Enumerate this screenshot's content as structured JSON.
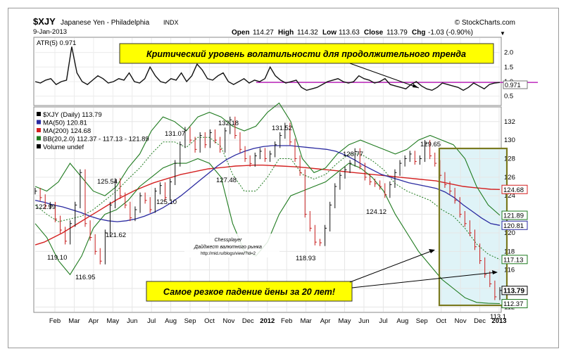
{
  "header": {
    "symbol": "$XJY",
    "name": "Japanese Yen - Philadelphia",
    "exchange": "INDX",
    "date": "9-Jan-2013",
    "brand": "© StockCharts.com",
    "open_label": "Open",
    "open": "114.27",
    "high_label": "High",
    "high": "114.32",
    "low_label": "Low",
    "low": "113.63",
    "close_label": "Close",
    "close": "113.79",
    "chg_label": "Chg",
    "chg": "-1.03 (-0.90%)",
    "chg_arrow": "▼"
  },
  "atr_panel": {
    "legend": "ATR(5) 0.971",
    "ticks": [
      "2.0",
      "1.5",
      "1.0",
      "0.5"
    ],
    "last_value": "0.971",
    "level_line_color": "#b000b0",
    "annotation": "Критический уровень волатильности для продолжительного тренда"
  },
  "price_panel": {
    "legend": [
      {
        "text": "$XJY (Daily) 113.79",
        "color": "#000000"
      },
      {
        "text": "MA(50) 120.81",
        "color": "#2a2aa0"
      },
      {
        "text": "MA(200) 124.68",
        "color": "#d42020"
      },
      {
        "text": "BB(20,2.0) 112.37 - 117.13 - 121.89",
        "color": "#1e7a1e"
      },
      {
        "text": "Volume undef",
        "color": "#000000"
      }
    ],
    "yticks": [
      "132",
      "130",
      "128",
      "126",
      "124",
      "122",
      "120",
      "118",
      "116",
      "114",
      "112"
    ],
    "right_labels": [
      {
        "text": "124.68",
        "value": 124.68,
        "color": "#d42020"
      },
      {
        "text": "121.89",
        "value": 121.89,
        "color": "#1e7a1e"
      },
      {
        "text": "120.81",
        "value": 120.81,
        "color": "#2a2aa0"
      },
      {
        "text": "117.13",
        "value": 117.13,
        "color": "#1e7a1e"
      },
      {
        "text": "113.79",
        "value": 113.79,
        "color": "#000000"
      },
      {
        "text": "112.37",
        "value": 112.37,
        "color": "#1e7a1e"
      }
    ],
    "annotation": "Самое резкое падение йены за 20 лет!",
    "watermark_lines": [
      "Chessplayer",
      "Дайджест валютного рынка",
      "http://mid.ru/blogs/view/?id=2"
    ],
    "highlight_color": "#7a7a20"
  },
  "chart_data": {
    "type": "line",
    "x_axis": [
      "Feb",
      "Mar",
      "Apr",
      "May",
      "Jun",
      "Jul",
      "Aug",
      "Sep",
      "Oct",
      "Nov",
      "Dec",
      "2012",
      "Feb",
      "Mar",
      "Apr",
      "May",
      "Jun",
      "Jul",
      "Aug",
      "Sep",
      "Oct",
      "Nov",
      "Dec",
      "2013"
    ],
    "ylim": [
      111.5,
      133.5
    ],
    "price_annotations": [
      {
        "label": "122.99",
        "value": 122.99
      },
      {
        "label": "119.10",
        "value": 119.1
      },
      {
        "label": "116.95",
        "value": 116.95
      },
      {
        "label": "125.54",
        "value": 125.54
      },
      {
        "label": "121.62",
        "value": 121.62
      },
      {
        "label": "125.10",
        "value": 125.1
      },
      {
        "label": "131.07",
        "value": 131.07
      },
      {
        "label": "132.18",
        "value": 132.18
      },
      {
        "label": "127.48",
        "value": 127.48
      },
      {
        "label": "131.52",
        "value": 131.52
      },
      {
        "label": "118.93",
        "value": 118.93
      },
      {
        "label": "128.77",
        "value": 128.77
      },
      {
        "label": "124.12",
        "value": 124.12
      },
      {
        "label": "129.65",
        "value": 129.65
      },
      {
        "label": "113.1",
        "value": 113.1
      }
    ],
    "price": [
      124.5,
      123.8,
      122.9,
      122.99,
      121.5,
      120.3,
      119.1,
      121,
      123,
      126.5,
      121,
      119.5,
      118,
      116.95,
      120,
      123,
      125.54,
      124,
      123,
      121.62,
      122.5,
      124,
      123.5,
      122.5,
      124.5,
      125.1,
      123.8,
      125.5,
      127.5,
      129.5,
      131.07,
      130,
      129,
      130.5,
      129.5,
      130.8,
      130,
      129,
      131,
      132.18,
      130.5,
      129,
      128,
      127.48,
      128.3,
      128.8,
      128,
      128.5,
      129.5,
      130.5,
      131.52,
      129.8,
      128,
      126.5,
      122,
      120.5,
      119,
      118.93,
      120.5,
      123,
      125,
      126.2,
      126.8,
      127.5,
      128.77,
      127.2,
      126,
      125.5,
      125.3,
      125,
      124.12,
      125.2,
      126.5,
      127.5,
      128,
      128.5,
      127.7,
      128,
      129.65,
      128.3,
      127.5,
      126.2,
      125.2,
      124.5,
      123.5,
      122,
      121,
      120,
      118.5,
      117,
      115.5,
      114.5,
      113.1,
      113.79
    ],
    "ma50": [
      123.5,
      123.3,
      123,
      122.8,
      122.5,
      122.2,
      121.8,
      121.5,
      121.3,
      121.2,
      121.3,
      121.5,
      121.8,
      122.2,
      122.7,
      123.3,
      124,
      124.8,
      125.6,
      126.4,
      127.2,
      127.9,
      128.4,
      128.8,
      129.1,
      129.3,
      129.4,
      129.4,
      129.4,
      129.3,
      129.2,
      129.1,
      129,
      128.8,
      128.4,
      127.9,
      127.3,
      126.8,
      126.3,
      126,
      125.7,
      125.4,
      125.2,
      125,
      124.8,
      124.4,
      123.8,
      123,
      122.3,
      121.6,
      121,
      120.81
    ],
    "ma200": [
      118.7,
      119,
      119.5,
      120,
      120.6,
      121.2,
      121.8,
      122.4,
      123,
      123.6,
      124.1,
      124.6,
      125,
      125.4,
      125.7,
      126,
      126.3,
      126.5,
      126.7,
      126.9,
      127,
      127.1,
      127.2,
      127.25,
      127.3,
      127.3,
      127.25,
      127.2,
      127.15,
      127.1,
      127,
      126.9,
      126.8,
      126.7,
      126.6,
      126.5,
      126.4,
      126.3,
      126.2,
      126.1,
      126,
      125.9,
      125.8,
      125.7,
      125.6,
      125.4,
      125.2,
      125,
      124.9,
      124.8,
      124.7,
      124.68
    ],
    "bb_upper": [
      125,
      124.5,
      125.5,
      127.5,
      126,
      124.5,
      124,
      125,
      127,
      128.5,
      131,
      132.5,
      132,
      131,
      132.5,
      133,
      132.5,
      131.5,
      131,
      131.5,
      133,
      134,
      132,
      128,
      126.5,
      127,
      128.5,
      129.5,
      130,
      129.5,
      129,
      128.5,
      129,
      130,
      130.5,
      130,
      129.5,
      128,
      125,
      123,
      121.89
    ],
    "bb_lower": [
      121,
      119.5,
      117,
      115.5,
      117.5,
      120.5,
      122,
      122.5,
      123.5,
      125,
      126,
      127,
      127.5,
      127.5,
      128,
      127.5,
      126,
      121,
      118,
      117.5,
      119,
      122,
      124,
      124.5,
      125,
      125.5,
      126.5,
      127.5,
      127,
      126,
      124.5,
      122,
      120,
      118,
      116.5,
      115,
      114,
      113,
      112.5,
      112.4,
      112.37
    ],
    "bb_mid": [
      123,
      122,
      121.2,
      121.5,
      121.8,
      122.5,
      123.5,
      124.5,
      125.8,
      127,
      128.5,
      129.8,
      129.8,
      129.2,
      130.3,
      130.3,
      129.3,
      126.3,
      124.5,
      124.5,
      126,
      128,
      128,
      126.3,
      125.8,
      126.3,
      127.5,
      128.5,
      128.5,
      127.8,
      126.8,
      125.3,
      124.5,
      124,
      123.5,
      122.5,
      121.8,
      120.5,
      118.8,
      117.7,
      117.13
    ],
    "atr": [
      1.0,
      0.95,
      1.05,
      1.1,
      0.9,
      1.0,
      1.05,
      2.2,
      1.3,
      1.0,
      0.9,
      1.05,
      1.2,
      1.1,
      0.95,
      1.0,
      1.1,
      1.05,
      1.3,
      1.0,
      0.95,
      1.1,
      1.5,
      1.2,
      1.0,
      0.95,
      1.1,
      1.05,
      1.3,
      1.0,
      1.2,
      1.6,
      1.4,
      1.1,
      1.05,
      1.2,
      1.3,
      1.0,
      0.9,
      1.0,
      1.1,
      0.95,
      1.05,
      1.0,
      1.1,
      1.5,
      1.2,
      1.05,
      0.95,
      1.0,
      1.05,
      0.8,
      0.7,
      0.75,
      0.8,
      0.9,
      1.0,
      1.05,
      1.1,
      1.0,
      0.95,
      1.0,
      1.2,
      1.1,
      1.05,
      0.95,
      1.0,
      1.1,
      0.9,
      0.85,
      0.8,
      0.75,
      0.9,
      1.0,
      0.85,
      0.75,
      0.7,
      0.8,
      0.95,
      0.9,
      0.85,
      0.8,
      0.7,
      0.8,
      0.95,
      0.85,
      0.75,
      0.9,
      0.95,
      0.971
    ],
    "atr_ylim": [
      0.2,
      2.5
    ],
    "atr_level": 0.971
  }
}
